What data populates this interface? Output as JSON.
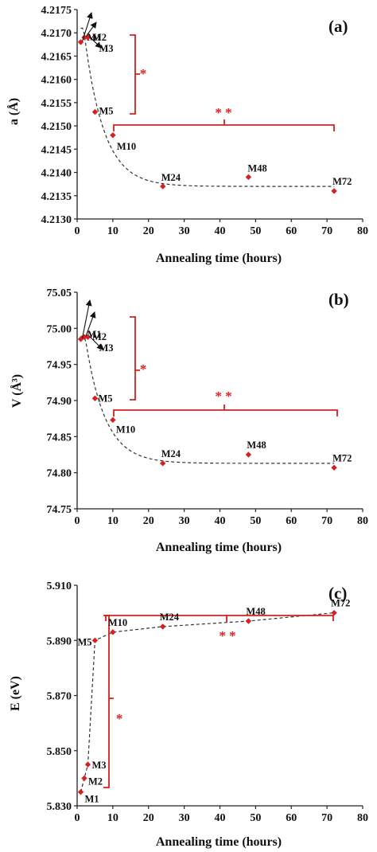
{
  "chart_data": [
    {
      "type": "scatter",
      "panel_label": "(a)",
      "xlabel": "Annealing time (hours)",
      "ylabel": "a (Å)",
      "xlim": [
        0,
        80
      ],
      "ylim": [
        4.213,
        4.2175
      ],
      "xticks": [
        "0",
        "10",
        "20",
        "30",
        "40",
        "50",
        "60",
        "70",
        "80"
      ],
      "yticks": [
        "4.2130",
        "4.2135",
        "4.2140",
        "4.2145",
        "4.2150",
        "4.2155",
        "4.2160",
        "4.2165",
        "4.2170",
        "4.2175"
      ],
      "series": [
        {
          "x": [
            1,
            2,
            3,
            5,
            10,
            24,
            48,
            72
          ],
          "y": [
            4.2168,
            4.2169,
            4.2169,
            4.2153,
            4.2148,
            4.2137,
            4.2139,
            4.2136
          ],
          "labels": [
            "M1",
            "M2",
            "M3",
            "M5",
            "M10",
            "M24",
            "M48",
            "M72"
          ]
        }
      ],
      "trend": "dashed exponential-decay fit",
      "annotations": [
        "*",
        "* *"
      ],
      "color": "#d42020"
    },
    {
      "type": "scatter",
      "panel_label": "(b)",
      "xlabel": "Annealing time (hours)",
      "ylabel": "V (Å³)",
      "xlim": [
        0,
        80
      ],
      "ylim": [
        74.75,
        75.05
      ],
      "xticks": [
        "0",
        "10",
        "20",
        "30",
        "40",
        "50",
        "60",
        "70",
        "80"
      ],
      "yticks": [
        "74.75",
        "74.80",
        "74.85",
        "74.90",
        "74.95",
        "75.00",
        "75.05"
      ],
      "series": [
        {
          "x": [
            1,
            2,
            3,
            5,
            10,
            24,
            48,
            72
          ],
          "y": [
            74.985,
            74.988,
            74.988,
            74.903,
            74.873,
            74.813,
            74.825,
            74.807
          ],
          "labels": [
            "M1",
            "M2",
            "M3",
            "M5",
            "M10",
            "M24",
            "M48",
            "M72"
          ]
        }
      ],
      "trend": "dashed exponential-decay fit",
      "annotations": [
        "*",
        "* *"
      ],
      "color": "#d42020"
    },
    {
      "type": "scatter",
      "panel_label": "(c)",
      "xlabel": "Annealing time (hours)",
      "ylabel": "E (eV)",
      "xlim": [
        0,
        80
      ],
      "ylim": [
        5.83,
        5.91
      ],
      "xticks": [
        "0",
        "10",
        "20",
        "30",
        "40",
        "50",
        "60",
        "70",
        "80"
      ],
      "yticks": [
        "5.830",
        "5.850",
        "5.870",
        "5.890",
        "5.910"
      ],
      "series": [
        {
          "x": [
            1,
            2,
            3,
            5,
            10,
            24,
            48,
            72
          ],
          "y": [
            5.835,
            5.84,
            5.845,
            5.89,
            5.893,
            5.895,
            5.897,
            5.9
          ],
          "labels": [
            "M1",
            "M2",
            "M3",
            "M5",
            "M10",
            "M24",
            "M48",
            "M72"
          ]
        }
      ],
      "trend": "dashed piecewise-linear guide",
      "annotations": [
        "*",
        "* *"
      ],
      "color": "#d42020"
    }
  ]
}
